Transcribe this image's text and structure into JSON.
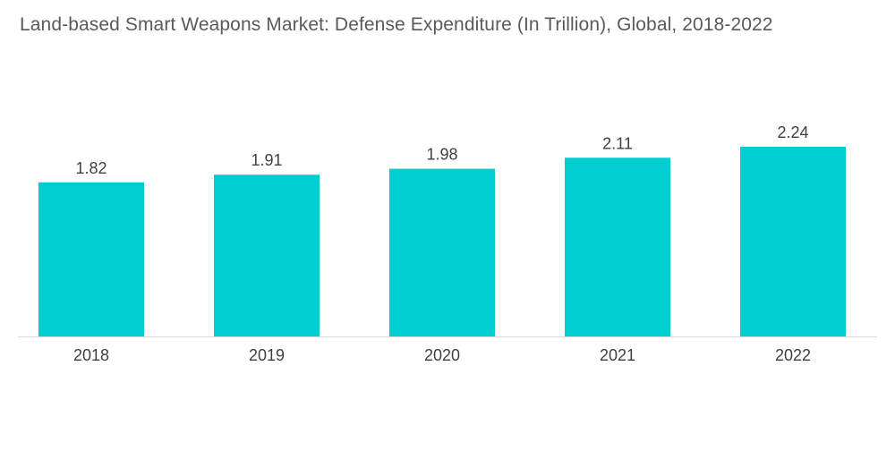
{
  "chart_data": {
    "type": "bar",
    "title": "Land-based Smart Weapons Market: Defense Expenditure (In Trillion), Global, 2018-2022",
    "categories": [
      "2018",
      "2019",
      "2020",
      "2021",
      "2022"
    ],
    "values": [
      1.82,
      1.91,
      1.98,
      2.11,
      2.24
    ],
    "value_labels": [
      "1.82",
      "1.91",
      "1.98",
      "2.11",
      "2.24"
    ],
    "xlabel": "",
    "ylabel": "",
    "ylim": [
      0,
      2.24
    ],
    "grid": false,
    "legend": "none",
    "bar_color": "#00CDD0",
    "axis_color": "#d9d9d9"
  }
}
